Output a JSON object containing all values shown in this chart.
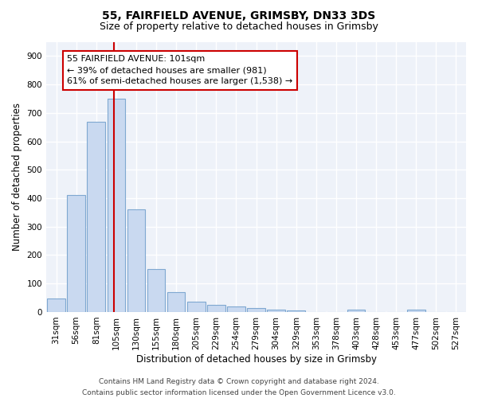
{
  "title_line1": "55, FAIRFIELD AVENUE, GRIMSBY, DN33 3DS",
  "title_line2": "Size of property relative to detached houses in Grimsby",
  "xlabel": "Distribution of detached houses by size in Grimsby",
  "ylabel": "Number of detached properties",
  "bar_labels": [
    "31sqm",
    "56sqm",
    "81sqm",
    "105sqm",
    "130sqm",
    "155sqm",
    "180sqm",
    "205sqm",
    "229sqm",
    "254sqm",
    "279sqm",
    "304sqm",
    "329sqm",
    "353sqm",
    "378sqm",
    "403sqm",
    "428sqm",
    "453sqm",
    "477sqm",
    "502sqm",
    "527sqm"
  ],
  "bar_values": [
    48,
    410,
    670,
    750,
    360,
    150,
    70,
    35,
    25,
    20,
    15,
    8,
    5,
    0,
    0,
    8,
    0,
    0,
    8,
    0,
    0
  ],
  "bar_color": "#c9d9f0",
  "bar_edge_color": "#7fa8d1",
  "vline_color": "#cc0000",
  "annotation_text": "55 FAIRFIELD AVENUE: 101sqm\n← 39% of detached houses are smaller (981)\n61% of semi-detached houses are larger (1,538) →",
  "annotation_box_color": "#ffffff",
  "annotation_box_edge": "#cc0000",
  "ylim": [
    0,
    950
  ],
  "yticks": [
    0,
    100,
    200,
    300,
    400,
    500,
    600,
    700,
    800,
    900
  ],
  "bg_color": "#eef2f9",
  "footer_text": "Contains HM Land Registry data © Crown copyright and database right 2024.\nContains public sector information licensed under the Open Government Licence v3.0.",
  "grid_color": "#ffffff",
  "title_fontsize": 10,
  "subtitle_fontsize": 9,
  "axis_label_fontsize": 8.5,
  "tick_fontsize": 7.5,
  "annotation_fontsize": 8,
  "footer_fontsize": 6.5
}
